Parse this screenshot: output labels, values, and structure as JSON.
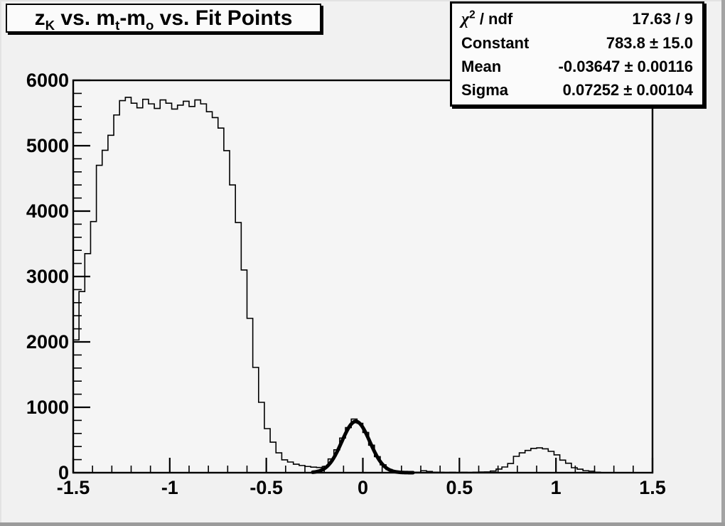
{
  "title": {
    "p1": "z",
    "s1": "K",
    "p2": " vs. m",
    "s2": "t",
    "p3": "-m",
    "s3": "o",
    "p4": " vs. Fit Points",
    "full": "z_K vs. m_t-m_o vs. Fit Points"
  },
  "stats": {
    "rows": [
      {
        "label": "χ² / ndf",
        "chi": "χ",
        "sup": "2",
        "rest": " / ndf",
        "value": "17.63 / 9"
      },
      {
        "label": "Constant",
        "value": "783.8 ± 15.0"
      },
      {
        "label": "Mean",
        "value": "-0.03647 ± 0.00116"
      },
      {
        "label": "Sigma",
        "value": "0.07252 ± 0.00104"
      }
    ]
  },
  "chart_data": {
    "type": "histogram",
    "title": "z_K vs. m_t-m_o vs. Fit Points",
    "xlabel": "",
    "ylabel": "",
    "xlim": [
      -1.5,
      1.5
    ],
    "ylim": [
      0,
      6000
    ],
    "grid": false,
    "x_tick_labels": [
      "-1.5",
      "-1",
      "-0.5",
      "0",
      "0.5",
      "1",
      "1.5"
    ],
    "x_tick_values": [
      -1.5,
      -1,
      -0.5,
      0,
      0.5,
      1,
      1.5
    ],
    "x_minor_step": 0.1,
    "y_tick_labels": [
      "0",
      "1000",
      "2000",
      "3000",
      "4000",
      "5000",
      "6000"
    ],
    "y_tick_values": [
      0,
      1000,
      2000,
      3000,
      4000,
      5000,
      6000
    ],
    "y_minor_step": 200,
    "bin_start": -1.5,
    "bin_width": 0.03,
    "bins": [
      2030,
      2770,
      3350,
      3840,
      4700,
      4930,
      5160,
      5470,
      5690,
      5740,
      5650,
      5580,
      5710,
      5640,
      5570,
      5700,
      5650,
      5560,
      5620,
      5680,
      5600,
      5700,
      5640,
      5520,
      5430,
      5270,
      4925,
      4400,
      3825,
      3100,
      2360,
      1610,
      1076,
      674,
      467,
      304,
      196,
      163,
      130,
      110,
      95,
      85,
      80,
      95,
      210,
      350,
      530,
      690,
      820,
      755,
      615,
      420,
      245,
      120,
      50,
      20,
      10,
      6,
      5,
      8,
      30,
      18,
      8,
      6,
      5,
      6,
      4,
      6,
      5,
      8,
      10,
      12,
      25,
      55,
      87,
      141,
      250,
      304,
      340,
      372,
      380,
      365,
      326,
      272,
      192,
      145,
      76,
      54,
      30,
      22,
      8,
      0,
      0,
      0,
      0,
      0,
      0,
      0,
      0,
      0
    ],
    "fit": {
      "type": "gaussian",
      "chi2": 17.63,
      "ndf": 9,
      "constant": 783.8,
      "constant_err": 15.0,
      "mean": -0.03647,
      "mean_err": 0.00116,
      "sigma": 0.07252,
      "sigma_err": 0.00104,
      "draw_min": -0.26,
      "draw_max": 0.26
    }
  }
}
